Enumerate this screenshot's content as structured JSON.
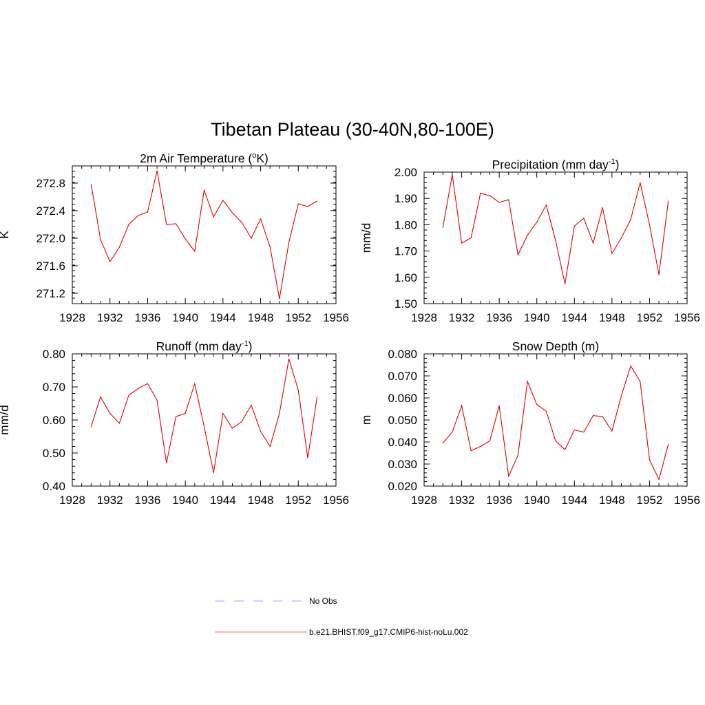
{
  "figure": {
    "title": "Tibetan Plateau (30-40N,80-100E)"
  },
  "legend": {
    "placement": "bottom-center",
    "entries": [
      {
        "label": "No Obs",
        "color": "#b3b3ff",
        "dash": "dashed"
      },
      {
        "label": "b.e21.BHIST.f09_g17.CMIP6-hist-noLu.002",
        "color": "#ff8080",
        "dash": "solid"
      }
    ]
  },
  "chart_data": [
    {
      "type": "line",
      "title_main": "2m Air Temperature (",
      "title_sup": "o",
      "title_tail": "K)",
      "ylabel": "K",
      "xlim": [
        1928,
        1956
      ],
      "ylim": [
        271.05,
        273.05
      ],
      "xticks": [
        "1928",
        "1932",
        "1936",
        "1940",
        "1944",
        "1948",
        "1952",
        "1956"
      ],
      "yticks": [
        "271.2",
        "271.6",
        "272.0",
        "272.4",
        "272.8"
      ],
      "ytick_values": [
        271.2,
        271.6,
        272.0,
        272.4,
        272.8
      ],
      "series": [
        {
          "color": "#e00000",
          "x": [
            1930,
            1931,
            1932,
            1933,
            1934,
            1935,
            1936,
            1937,
            1938,
            1939,
            1940,
            1941,
            1942,
            1943,
            1944,
            1945,
            1946,
            1947,
            1948,
            1949,
            1950,
            1951,
            1952,
            1953,
            1954
          ],
          "values": [
            272.78,
            271.98,
            271.66,
            271.87,
            272.2,
            272.33,
            272.38,
            272.98,
            272.2,
            272.21,
            271.99,
            271.81,
            272.7,
            272.31,
            272.55,
            272.37,
            272.23,
            272.0,
            272.28,
            271.87,
            271.12,
            271.94,
            272.5,
            272.46,
            272.54
          ]
        }
      ]
    },
    {
      "type": "line",
      "title_main": "Precipitation (mm day",
      "title_sup": "-1",
      "title_tail": ")",
      "ylabel": "mm/d",
      "xlim": [
        1928,
        1956
      ],
      "ylim": [
        1.5,
        2.0
      ],
      "xticks": [
        "1928",
        "1932",
        "1936",
        "1940",
        "1944",
        "1948",
        "1952",
        "1956"
      ],
      "yticks": [
        "1.50",
        "1.60",
        "1.70",
        "1.80",
        "1.90",
        "2.00"
      ],
      "ytick_values": [
        1.5,
        1.6,
        1.7,
        1.8,
        1.9,
        2.0
      ],
      "series": [
        {
          "color": "#e00000",
          "x": [
            1930,
            1931,
            1932,
            1933,
            1934,
            1935,
            1936,
            1937,
            1938,
            1939,
            1940,
            1941,
            1942,
            1943,
            1944,
            1945,
            1946,
            1947,
            1948,
            1949,
            1950,
            1951,
            1952,
            1953,
            1954
          ],
          "values": [
            1.79,
            1.99,
            1.73,
            1.75,
            1.92,
            1.91,
            1.885,
            1.895,
            1.685,
            1.76,
            1.81,
            1.875,
            1.74,
            1.575,
            1.795,
            1.825,
            1.73,
            1.865,
            1.69,
            1.75,
            1.82,
            1.96,
            1.8,
            1.61,
            1.89
          ]
        }
      ]
    },
    {
      "type": "line",
      "title_main": "Runoff (mm day",
      "title_sup": "-1",
      "title_tail": ")",
      "ylabel": "mm/d",
      "xlim": [
        1928,
        1956
      ],
      "ylim": [
        0.4,
        0.8
      ],
      "xticks": [
        "1928",
        "1932",
        "1936",
        "1940",
        "1944",
        "1948",
        "1952",
        "1956"
      ],
      "yticks": [
        "0.40",
        "0.50",
        "0.60",
        "0.70",
        "0.80"
      ],
      "ytick_values": [
        0.4,
        0.5,
        0.6,
        0.7,
        0.8
      ],
      "series": [
        {
          "color": "#e00000",
          "x": [
            1930,
            1931,
            1932,
            1933,
            1934,
            1935,
            1936,
            1937,
            1938,
            1939,
            1940,
            1941,
            1942,
            1943,
            1944,
            1945,
            1946,
            1947,
            1948,
            1949,
            1950,
            1951,
            1952,
            1953,
            1954
          ],
          "values": [
            0.58,
            0.67,
            0.62,
            0.59,
            0.675,
            0.695,
            0.71,
            0.66,
            0.47,
            0.61,
            0.62,
            0.71,
            0.58,
            0.44,
            0.62,
            0.575,
            0.595,
            0.645,
            0.565,
            0.52,
            0.62,
            0.785,
            0.69,
            0.485,
            0.67
          ]
        }
      ]
    },
    {
      "type": "line",
      "title_main": "Snow Depth (m)",
      "title_sup": "",
      "title_tail": "",
      "ylabel": "m",
      "xlim": [
        1928,
        1956
      ],
      "ylim": [
        0.02,
        0.08
      ],
      "xticks": [
        "1928",
        "1932",
        "1936",
        "1940",
        "1944",
        "1948",
        "1952",
        "1956"
      ],
      "yticks": [
        "0.020",
        "0.030",
        "0.040",
        "0.050",
        "0.060",
        "0.070",
        "0.080"
      ],
      "ytick_values": [
        0.02,
        0.03,
        0.04,
        0.05,
        0.06,
        0.07,
        0.08
      ],
      "series": [
        {
          "color": "#e00000",
          "x": [
            1930,
            1931,
            1932,
            1933,
            1934,
            1935,
            1936,
            1937,
            1938,
            1939,
            1940,
            1941,
            1942,
            1943,
            1944,
            1945,
            1946,
            1947,
            1948,
            1949,
            1950,
            1951,
            1952,
            1953,
            1954
          ],
          "values": [
            0.0395,
            0.0445,
            0.0565,
            0.036,
            0.038,
            0.0405,
            0.0565,
            0.0245,
            0.034,
            0.0675,
            0.057,
            0.054,
            0.0405,
            0.0365,
            0.0455,
            0.0445,
            0.052,
            0.0515,
            0.045,
            0.061,
            0.0745,
            0.0675,
            0.032,
            0.023,
            0.039
          ]
        }
      ]
    }
  ]
}
